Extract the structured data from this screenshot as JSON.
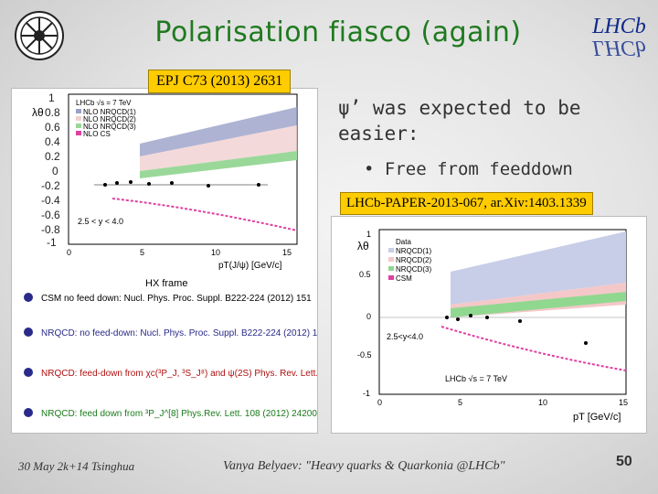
{
  "title": "Polarisation fiasco (again)",
  "logo_right": "LHCb",
  "ref1": "EPJ C73 (2013) 2631",
  "ref2": "LHCb-PAPER-2013-067, ar.Xiv:1403.1339",
  "bullet": "ψ’ was expected to be easier:",
  "sub_bullet": "Free from feeddown",
  "footer": {
    "date": "30 May 2k+14 Tsinghua",
    "author": "Vanya Belyaev: \"Heavy quarks & Quarkonia @LHCb\"",
    "page": "50"
  },
  "left_plot": {
    "ylabel": "λθ",
    "xlabel": "pT(J/ψ) [GeV/c]",
    "frame": "HX frame",
    "range_note": "2.5 < y < 4.0",
    "legend": [
      "LHCb √s = 7 TeV",
      "NLO NRQCD(1)",
      "NLO NRQCD(2)",
      "NLO NRQCD(3)",
      "NLO CS"
    ],
    "yticks": [
      "1",
      "0.8",
      "0.6",
      "0.4",
      "0.2",
      "0",
      "-0.2",
      "-0.4",
      "-0.6",
      "-0.8",
      "-1"
    ],
    "xticks": [
      "0",
      "5",
      "10",
      "15"
    ],
    "notes": [
      "CSM no feed down: Nucl. Phys. Proc. Suppl. B222-224 (2012) 151",
      "NRQCD: no feed-down: Nucl. Phys. Proc. Suppl. B222-224 (2012) 151",
      "NRQCD: feed-down from χc(³P_J, ³S_J⁸) and ψ(2S) Phys. Rev. Lett. 110 (2013) 042002",
      "NRQCD: feed down from ³P_J^[8] Phys.Rev. Lett. 108 (2012) 242004"
    ]
  },
  "right_plot": {
    "ylabel": "λθ",
    "xlabel": "pT [GeV/c]",
    "range_note": "2.5<y<4.0",
    "lhcb_label": "LHCb √s = 7 TeV",
    "legend": [
      "Data",
      "NRQCD(1)",
      "NRQCD(2)",
      "NRQCD(3)",
      "CSM"
    ],
    "yticks": [
      "1",
      "0.5",
      "0",
      "-0.5",
      "-1"
    ],
    "xticks": [
      "0",
      "5",
      "10",
      "15"
    ]
  }
}
